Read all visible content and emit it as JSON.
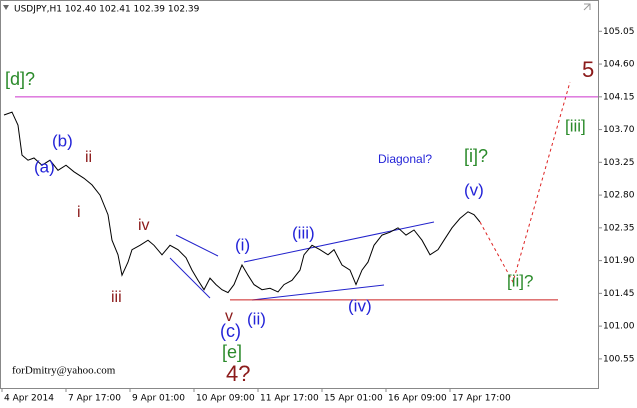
{
  "chart_data": {
    "type": "line",
    "title": "USDJPY,H1  102.40 102.41 102.39 102.39",
    "watermark": "forDmitry@yahoo.com",
    "xlim": [
      0,
      299
    ],
    "ylim": [
      100.15,
      105.48
    ],
    "xticks": [
      {
        "value": 1,
        "label": "4 Apr 2014"
      },
      {
        "value": 33,
        "label": "7 Apr 17:00"
      },
      {
        "value": 65,
        "label": "9 Apr 01:00"
      },
      {
        "value": 97,
        "label": "10 Apr 09:00"
      },
      {
        "value": 129,
        "label": "11 Apr 17:00"
      },
      {
        "value": 161,
        "label": "15 Apr 01:00"
      },
      {
        "value": 193,
        "label": "16 Apr 09:00"
      },
      {
        "value": 225,
        "label": "17 Apr 17:00"
      }
    ],
    "yticks": [
      100.55,
      {
        "value": 101,
        "label": "101.00"
      },
      101.45,
      {
        "value": 101.9,
        "label": "101.90"
      },
      102.35,
      {
        "value": 102.8,
        "label": "102.80"
      },
      103.25,
      {
        "value": 103.7,
        "label": "103.70"
      },
      104.15,
      {
        "value": 104.6,
        "label": "104.60"
      },
      105.05
    ],
    "grid": false,
    "series": [
      {
        "color": "#000000",
        "x": [
          2,
          6,
          9,
          11,
          14,
          17,
          21,
          25,
          29,
          33,
          37,
          42,
          46,
          50,
          54,
          56,
          59,
          61,
          64,
          66,
          70,
          74,
          77,
          81,
          85,
          89,
          93,
          96,
          99,
          102,
          105,
          108,
          111,
          114,
          117,
          121,
          124,
          127,
          131,
          135,
          139,
          142,
          146,
          150,
          152,
          156,
          160,
          164,
          167,
          171,
          175,
          178,
          181,
          184,
          187,
          191,
          195,
          199,
          203,
          207,
          211,
          215,
          219,
          222,
          226,
          230,
          234,
          237,
          240
        ],
        "values": [
          103.9,
          103.94,
          103.76,
          103.35,
          103.28,
          103.31,
          103.21,
          103.28,
          103.14,
          103.21,
          103.12,
          103.03,
          102.94,
          102.8,
          102.53,
          102.18,
          101.98,
          101.7,
          101.88,
          102.05,
          102.11,
          102.18,
          102.11,
          101.98,
          102.11,
          102.05,
          101.94,
          101.77,
          101.63,
          101.5,
          101.66,
          101.57,
          101.5,
          101.46,
          101.57,
          101.84,
          101.7,
          101.57,
          101.5,
          101.52,
          101.47,
          101.57,
          101.63,
          101.77,
          101.98,
          102.11,
          102.05,
          101.98,
          102.05,
          101.84,
          101.77,
          101.57,
          101.77,
          101.88,
          102.11,
          102.25,
          102.29,
          102.35,
          102.25,
          102.32,
          102.18,
          101.98,
          102.05,
          102.18,
          102.35,
          102.48,
          102.57,
          102.53,
          102.43
        ]
      }
    ],
    "levels": [
      {
        "value": 104.15,
        "color": "#cc33cc"
      },
      {
        "value": 101.36,
        "color": "#cc2222"
      }
    ],
    "annotations": [
      "[d]?",
      "(b)",
      "ii",
      "(a)",
      "i",
      "iv",
      "iii",
      "(i)",
      "(iii)",
      "(ii)",
      "(iv)",
      "v",
      "(c)",
      "[e]",
      "4?",
      "Diagonal?",
      "[i]?",
      "(v)",
      "[ii]?",
      "[iii]",
      "5"
    ]
  }
}
